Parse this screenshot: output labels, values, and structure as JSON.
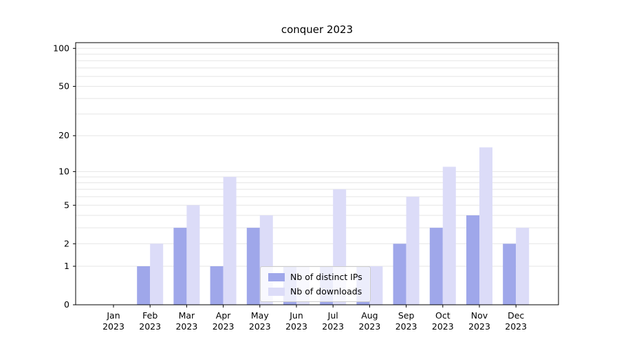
{
  "chart_data": {
    "type": "bar",
    "title": "conquer 2023",
    "scale": "log1p",
    "year_label": "2023",
    "months": [
      "Jan",
      "Feb",
      "Mar",
      "Apr",
      "May",
      "Jun",
      "Jul",
      "Aug",
      "Sep",
      "Oct",
      "Nov",
      "Dec"
    ],
    "series": [
      {
        "name": "Nb of distinct IPs",
        "color": "#9fa7ea",
        "values": [
          0,
          1,
          3,
          1,
          3,
          1,
          1,
          1,
          2,
          3,
          4,
          2
        ]
      },
      {
        "name": "Nb of downloads",
        "color": "#dcdcf8",
        "values": [
          0,
          2,
          5,
          9,
          4,
          1,
          7,
          1,
          6,
          11,
          16,
          3
        ]
      }
    ],
    "y_ticks": [
      0,
      1,
      2,
      5,
      10,
      20,
      50,
      100
    ],
    "grid_values": [
      1,
      2,
      3,
      4,
      5,
      6,
      7,
      8,
      9,
      10,
      20,
      30,
      40,
      50,
      60,
      70,
      80,
      90,
      100
    ],
    "ylim": [
      0,
      111
    ],
    "legend_position": "lower center",
    "grid_color": "#e5e5e5",
    "axis_color": "#000000"
  }
}
